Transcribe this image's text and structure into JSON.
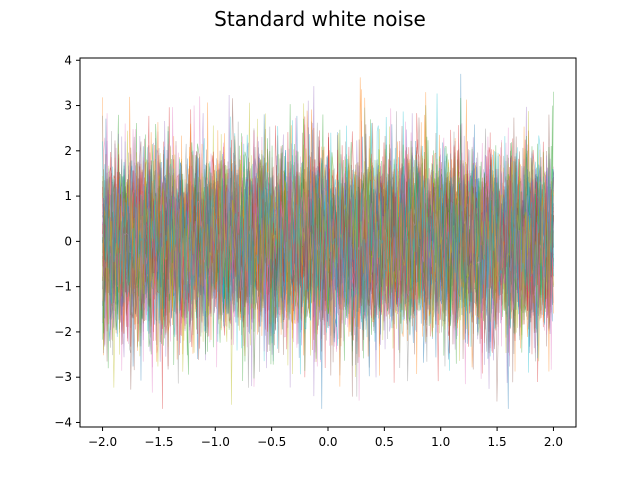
{
  "chart_data": {
    "type": "line",
    "title": "Standard white noise",
    "xlabel": "",
    "ylabel": "",
    "x_range": [
      -2.0,
      2.0
    ],
    "xlim": [
      -2.2,
      2.2
    ],
    "ylim": [
      -4.1,
      4.05
    ],
    "x_ticks": [
      -2.0,
      -1.5,
      -1.0,
      -0.5,
      0.0,
      0.5,
      1.0,
      1.5,
      2.0
    ],
    "x_tick_labels": [
      "−2.0",
      "−1.5",
      "−1.0",
      "−0.5",
      "0.0",
      "0.5",
      "1.0",
      "1.5",
      "2.0"
    ],
    "y_ticks": [
      -4,
      -3,
      -2,
      -1,
      0,
      1,
      2,
      3,
      4
    ],
    "y_tick_labels": [
      "−4",
      "−3",
      "−2",
      "−1",
      "0",
      "1",
      "2",
      "3",
      "4"
    ],
    "distribution": {
      "mean": 0,
      "std": 1
    },
    "grid": false,
    "legend": "none",
    "line_opacity": 0.5,
    "colors": [
      "#1f77b4",
      "#ff7f0e",
      "#2ca02c",
      "#d62728",
      "#9467bd",
      "#8c564b",
      "#e377c2",
      "#7f7f7f",
      "#bcbd22",
      "#17becf"
    ]
  }
}
